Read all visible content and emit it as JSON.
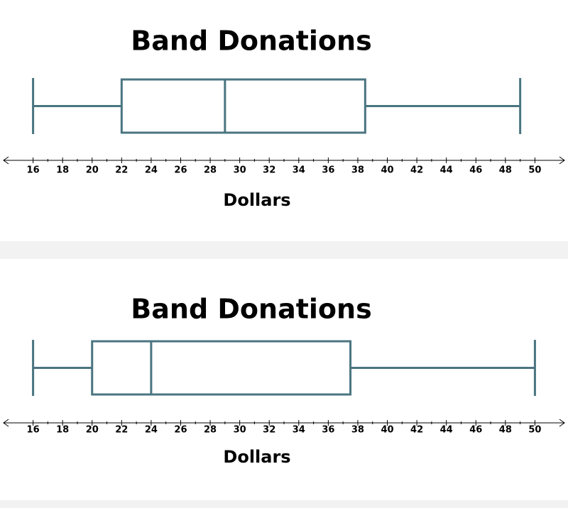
{
  "chart_data": [
    {
      "type": "box",
      "title": "Band Donations",
      "xlabel": "Dollars",
      "color": "#4a7580",
      "stats": {
        "min": 16,
        "q1": 22,
        "median": 29,
        "q3": 38.5,
        "max": 49
      },
      "xlim": [
        14,
        52
      ],
      "xticks": [
        16,
        18,
        20,
        22,
        24,
        26,
        28,
        30,
        32,
        34,
        36,
        38,
        40,
        42,
        44,
        46,
        48,
        50
      ],
      "xminorticks": [
        17,
        19,
        21,
        23,
        25,
        27,
        29,
        31,
        33,
        35,
        37,
        39,
        41,
        43,
        45,
        47,
        49
      ]
    },
    {
      "type": "box",
      "title": "Band Donations",
      "xlabel": "Dollars",
      "color": "#4a7580",
      "stats": {
        "min": 16,
        "q1": 20,
        "median": 24,
        "q3": 37.5,
        "max": 50
      },
      "xlim": [
        14,
        52
      ],
      "xticks": [
        16,
        18,
        20,
        22,
        24,
        26,
        28,
        30,
        32,
        34,
        36,
        38,
        40,
        42,
        44,
        46,
        48,
        50
      ],
      "xminorticks": [
        17,
        19,
        21,
        23,
        25,
        27,
        29,
        31,
        33,
        35,
        37,
        39,
        41,
        43,
        45,
        47,
        49
      ]
    }
  ]
}
